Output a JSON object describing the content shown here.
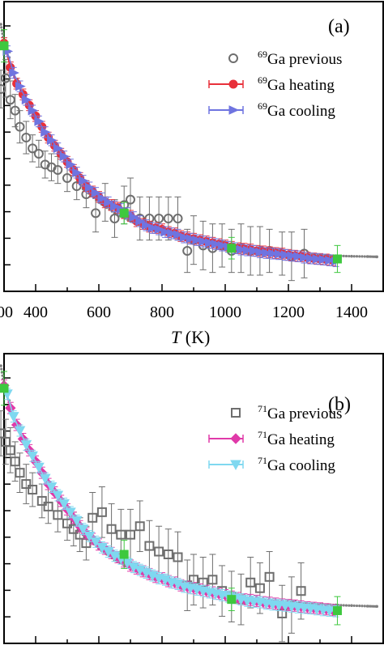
{
  "chart_data": [
    {
      "type": "scatter",
      "panel_label": "(a)",
      "xlabel_symbol": "T",
      "xlabel_unit": " (K)",
      "xlim": [
        300,
        1500
      ],
      "x_ticks": [
        400,
        600,
        800,
        1000,
        1200,
        1400
      ],
      "x_tick_labels": [
        "400",
        "600",
        "800",
        "1000",
        "1200",
        "1400"
      ],
      "x_edge_label": "00",
      "legend_position": "top-right",
      "guide_curve": {
        "color": "#7f7f7f",
        "x": [
          290,
          300,
          350,
          400,
          450,
          500,
          550,
          600,
          650,
          700,
          750,
          800,
          850,
          900,
          950,
          1000,
          1050,
          1100,
          1150,
          1200,
          1250,
          1300,
          1350,
          1400,
          1450,
          1480
        ],
        "v": [
          100,
          93,
          77,
          65,
          56,
          49,
          39,
          34,
          30,
          27,
          24.5,
          22.5,
          21,
          19.5,
          18.5,
          17.5,
          16.8,
          16.2,
          15.6,
          15.1,
          14.7,
          14.4,
          14.2,
          14.0,
          13.9,
          13.8
        ]
      },
      "series": [
        {
          "name_sup": "69",
          "name_text": "Ga previous",
          "marker": "circle-open",
          "color": "#6e6e6e",
          "x": [
            290,
            305,
            320,
            335,
            350,
            370,
            390,
            410,
            430,
            450,
            470,
            500,
            530,
            560,
            590,
            620,
            650,
            680,
            700,
            730,
            760,
            790,
            820,
            850,
            880,
            900,
            930,
            960,
            990,
            1020,
            1050,
            1080,
            1110,
            1140,
            1180,
            1210,
            1250
          ],
          "v": [
            76,
            80,
            72,
            68,
            62,
            58,
            54,
            52,
            48,
            47,
            46,
            43,
            40,
            37,
            30,
            34,
            28,
            33,
            35,
            28,
            28,
            28,
            28,
            28,
            16,
            20,
            18,
            17,
            18,
            16,
            17,
            16,
            16,
            16,
            15,
            14,
            15
          ],
          "err": [
            7,
            7,
            7,
            6,
            6,
            6,
            5,
            5,
            5,
            5,
            5,
            5,
            5,
            5,
            7,
            7,
            7,
            7,
            8,
            8,
            8,
            8,
            8,
            8,
            8,
            9,
            9,
            9,
            8,
            8,
            9,
            9,
            9,
            8,
            8,
            9,
            9
          ]
        },
        {
          "name_sup": "69",
          "name_text": "Ga heating",
          "marker": "circle-filled",
          "color": "#e8303a",
          "x": [
            300,
            320,
            340,
            360,
            380,
            400,
            420,
            440,
            460,
            480,
            500,
            520,
            540,
            560,
            580,
            600,
            620,
            640,
            660,
            680,
            700,
            720,
            740,
            760,
            780,
            800,
            820,
            840,
            860,
            880,
            900,
            920,
            940,
            960,
            980,
            1000,
            1020,
            1040,
            1060,
            1080,
            1100,
            1120,
            1140,
            1160,
            1180,
            1200,
            1220,
            1240,
            1260,
            1280,
            1300,
            1320,
            1340
          ],
          "v": [
            93,
            84,
            78,
            74,
            70,
            66,
            62,
            58,
            55,
            52,
            49,
            46,
            43,
            40,
            38,
            36,
            34,
            33,
            32,
            30,
            29,
            27,
            26,
            25,
            24.5,
            24,
            23,
            22.5,
            21.5,
            21,
            20.5,
            20,
            19.5,
            19,
            18.5,
            18,
            17.5,
            17,
            16.8,
            16.5,
            16,
            15.8,
            15.5,
            15.2,
            15,
            14.5,
            14.2,
            14,
            13.5,
            13.2,
            13,
            12.8,
            12.5
          ],
          "err": [
            2,
            2,
            2,
            2,
            2,
            2,
            2,
            2,
            2,
            2,
            2,
            2,
            2,
            2,
            2,
            2,
            2,
            2,
            2,
            2,
            2,
            2,
            2,
            2,
            2,
            2,
            2,
            2,
            2,
            2,
            2,
            2,
            2,
            2,
            2,
            2,
            2,
            2,
            2,
            2,
            2,
            2,
            2,
            2,
            2,
            2,
            2,
            2,
            2,
            2,
            2,
            2,
            2
          ]
        },
        {
          "name_sup": "69",
          "name_text": "Ga cooling",
          "marker": "triangle-right",
          "color": "#6f74e0",
          "x": [
            310,
            330,
            350,
            370,
            390,
            410,
            430,
            450,
            470,
            490,
            510,
            530,
            550,
            570,
            590,
            610,
            630,
            650,
            670,
            690,
            710,
            730,
            750,
            770,
            790,
            810,
            830,
            850,
            870,
            890,
            910,
            930,
            950,
            970,
            990,
            1010,
            1030,
            1050,
            1070,
            1090,
            1110,
            1130,
            1150,
            1170,
            1190,
            1210,
            1230,
            1250,
            1270,
            1290,
            1310,
            1330,
            1350
          ],
          "v": [
            90,
            82,
            77,
            72,
            68,
            64,
            60,
            57,
            54,
            51,
            48,
            45,
            42,
            39.5,
            37.5,
            35.5,
            34,
            32.5,
            31.5,
            30,
            28.5,
            27,
            25.5,
            24.5,
            24,
            23,
            22.5,
            22,
            21,
            20.5,
            20,
            19.5,
            19,
            18.5,
            18,
            17.5,
            17,
            16.5,
            16.2,
            16,
            15.5,
            15.2,
            15,
            14.8,
            14.5,
            14.2,
            14,
            13.5,
            13.2,
            13,
            12.8,
            12.5,
            12.2
          ],
          "err": [
            2,
            2,
            2,
            2,
            2,
            2,
            2,
            2,
            2,
            2,
            2,
            2,
            2,
            2,
            2,
            2,
            2,
            2,
            2,
            2,
            2,
            2,
            2,
            2,
            2,
            2,
            2,
            2,
            2,
            2,
            2,
            2,
            2,
            2,
            2,
            2,
            2,
            2,
            2,
            2,
            2,
            2,
            2,
            2,
            2,
            2,
            2,
            2,
            2,
            2,
            2,
            2,
            2
          ]
        },
        {
          "marker": "square-filled",
          "color": "#3ec83e",
          "x": [
            300,
            680,
            1020,
            1355
          ],
          "v": [
            92,
            30,
            17,
            13
          ],
          "err": [
            6,
            4,
            4,
            5
          ]
        }
      ]
    },
    {
      "type": "scatter",
      "panel_label": "(b)",
      "xlim": [
        300,
        1500
      ],
      "x_ticks": [
        400,
        600,
        800,
        1000,
        1200,
        1400
      ],
      "legend_position": "top-right",
      "guide_curve": {
        "color": "#7f7f7f",
        "x": [
          290,
          300,
          350,
          400,
          450,
          500,
          550,
          600,
          650,
          700,
          750,
          800,
          850,
          900,
          950,
          1000,
          1050,
          1100,
          1150,
          1200,
          1250,
          1300,
          1350,
          1400,
          1450,
          1480
        ],
        "v": [
          100,
          93,
          77,
          65,
          56,
          48,
          40,
          35,
          31,
          28,
          25.5,
          23.5,
          22,
          20.5,
          19.5,
          18.5,
          17.8,
          17,
          16.5,
          16,
          15.6,
          15.3,
          15,
          14.8,
          14.6,
          14.5
        ]
      },
      "series": [
        {
          "name_sup": "71",
          "name_text": "Ga previous",
          "marker": "square-open",
          "color": "#6e6e6e",
          "x": [
            290,
            305,
            320,
            335,
            350,
            370,
            390,
            420,
            440,
            470,
            500,
            520,
            540,
            560,
            580,
            610,
            640,
            670,
            700,
            730,
            760,
            790,
            820,
            850,
            880,
            900,
            930,
            960,
            990,
            1020,
            1050,
            1080,
            1110,
            1140,
            1180,
            1210,
            1240
          ],
          "v": [
            76,
            73,
            70,
            66,
            62,
            58,
            56,
            52,
            50,
            47,
            44,
            42,
            40,
            37,
            46,
            48,
            42,
            40,
            40,
            43,
            36,
            34,
            33,
            32,
            22,
            24,
            23,
            24,
            20,
            18,
            17,
            23,
            21,
            25,
            12,
            15,
            20
          ],
          "err": [
            8,
            8,
            8,
            7,
            7,
            7,
            6,
            6,
            6,
            6,
            6,
            6,
            6,
            6,
            9,
            9,
            9,
            9,
            9,
            9,
            9,
            9,
            9,
            9,
            9,
            9,
            9,
            9,
            9,
            9,
            9,
            9,
            9,
            9,
            10,
            10,
            10
          ]
        },
        {
          "name_sup": "71",
          "name_text": "Ga heating",
          "marker": "diamond-filled",
          "color": "#e03aa9",
          "x": [
            300,
            320,
            340,
            360,
            380,
            400,
            420,
            440,
            460,
            480,
            500,
            520,
            540,
            560,
            580,
            600,
            620,
            640,
            660,
            680,
            700,
            720,
            740,
            760,
            780,
            800,
            820,
            840,
            860,
            880,
            900,
            920,
            940,
            960,
            980,
            1000,
            1020,
            1040,
            1060,
            1080,
            1100,
            1120,
            1140,
            1160,
            1180,
            1200,
            1220,
            1240,
            1260,
            1280,
            1300,
            1320,
            1340
          ],
          "v": [
            93,
            85,
            79,
            74,
            70,
            66,
            62,
            58,
            55,
            52,
            49,
            46,
            43,
            40.5,
            38.5,
            36.5,
            35,
            33.5,
            32,
            30.5,
            29,
            28,
            27,
            26,
            25,
            24.5,
            23.5,
            23,
            22,
            21.5,
            21,
            20.5,
            20,
            19.5,
            19,
            18.5,
            18,
            17.5,
            17,
            16.8,
            16.5,
            16,
            15.8,
            15.5,
            15.2,
            15,
            14.8,
            14.5,
            14.2,
            14,
            13.8,
            13.5,
            13.2
          ],
          "err": [
            2,
            2,
            2,
            2,
            2,
            2,
            2,
            2,
            2,
            2,
            2,
            2,
            2,
            2,
            2,
            2,
            2,
            2,
            2,
            2,
            2,
            2,
            2,
            2,
            2,
            2,
            2,
            2,
            2,
            2,
            2,
            2,
            2,
            2,
            2,
            2,
            2,
            2,
            2,
            2,
            2,
            2,
            2,
            2,
            2,
            2,
            2,
            2,
            2,
            2,
            2,
            2,
            2
          ]
        },
        {
          "name_sup": "71",
          "name_text": "Ga cooling",
          "marker": "triangle-down",
          "color": "#7fd8f0",
          "x": [
            310,
            330,
            350,
            370,
            390,
            410,
            430,
            450,
            470,
            490,
            510,
            530,
            550,
            570,
            590,
            610,
            630,
            650,
            670,
            690,
            710,
            730,
            750,
            770,
            790,
            810,
            830,
            850,
            870,
            890,
            910,
            930,
            950,
            970,
            990,
            1010,
            1030,
            1050,
            1070,
            1090,
            1110,
            1130,
            1150,
            1170,
            1190,
            1210,
            1230,
            1250,
            1270,
            1290,
            1310,
            1330,
            1350
          ],
          "v": [
            90,
            82,
            77,
            72,
            68,
            64,
            60,
            57,
            54,
            51,
            48,
            45,
            42,
            39.5,
            37.5,
            35.5,
            34,
            32.5,
            31.5,
            30,
            28.5,
            27.5,
            26.5,
            25.5,
            24.5,
            24,
            23,
            22.5,
            21.5,
            21,
            20.5,
            20,
            19.5,
            19,
            18.5,
            18,
            17.5,
            17,
            16.5,
            16.2,
            16,
            15.5,
            15.2,
            15,
            14.8,
            14.5,
            14.2,
            14,
            13.8,
            13.5,
            13.2,
            13,
            12.8
          ],
          "err": [
            2,
            2,
            2,
            2,
            2,
            2,
            2,
            2,
            2,
            2,
            2,
            2,
            2,
            2,
            2,
            2,
            2,
            2,
            2,
            2,
            2,
            2,
            2,
            2,
            2,
            2,
            2,
            2,
            2,
            2,
            2,
            2,
            2,
            2,
            2,
            2,
            2,
            2,
            2,
            2,
            2,
            2,
            2,
            2,
            2,
            2,
            2,
            2,
            2,
            2,
            2,
            2,
            2
          ]
        },
        {
          "marker": "square-filled",
          "color": "#3ec83e",
          "x": [
            300,
            680,
            1020,
            1355
          ],
          "v": [
            92,
            33,
            17,
            13
          ],
          "err": [
            6,
            5,
            4,
            5
          ]
        }
      ]
    }
  ]
}
